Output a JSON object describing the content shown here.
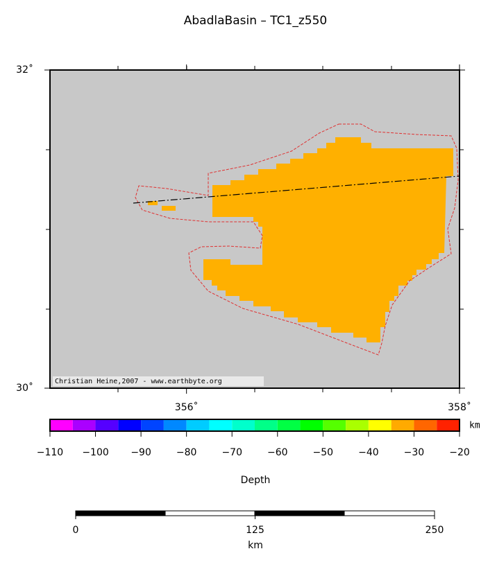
{
  "title": "AbadlaBasin – TC1_z550",
  "map": {
    "xlim": [
      355,
      358
    ],
    "ylim": [
      30,
      32
    ],
    "xticks": [
      {
        "value": 356,
        "label": "356˚"
      },
      {
        "value": 358,
        "label": "358˚"
      }
    ],
    "yticks": [
      {
        "value": 30,
        "label": "30˚"
      },
      {
        "value": 32,
        "label": "32˚"
      }
    ],
    "credit": "Christian Heine,2007 - www.earthbyte.org"
  },
  "colorbar": {
    "label": "Depth",
    "unit": "km",
    "boundaries": [
      -110,
      -105,
      -100,
      -95,
      -90,
      -85,
      -80,
      -75,
      -70,
      -65,
      -60,
      -55,
      -50,
      -45,
      -40,
      -35,
      -30,
      -25,
      -20
    ],
    "colors": [
      "#ff00ff",
      "#aa00ff",
      "#5500ff",
      "#0000ff",
      "#0044ff",
      "#0088ff",
      "#00ccff",
      "#00ffff",
      "#00ffcc",
      "#00ff88",
      "#00ff44",
      "#00ff00",
      "#55ff00",
      "#aaff00",
      "#ffff00",
      "#ffaa00",
      "#ff6600",
      "#ff2200"
    ],
    "ticks": [
      {
        "value": -110,
        "label": "−110"
      },
      {
        "value": -100,
        "label": "−100"
      },
      {
        "value": -90,
        "label": "−90"
      },
      {
        "value": -80,
        "label": "−80"
      },
      {
        "value": -70,
        "label": "−70"
      },
      {
        "value": -60,
        "label": "−60"
      },
      {
        "value": -50,
        "label": "−50"
      },
      {
        "value": -40,
        "label": "−40"
      },
      {
        "value": -30,
        "label": "−30"
      },
      {
        "value": -20,
        "label": "−20"
      }
    ]
  },
  "scalebar": {
    "xlim": [
      0,
      250
    ],
    "ticks": [
      0,
      125,
      250
    ],
    "label": "km"
  }
}
